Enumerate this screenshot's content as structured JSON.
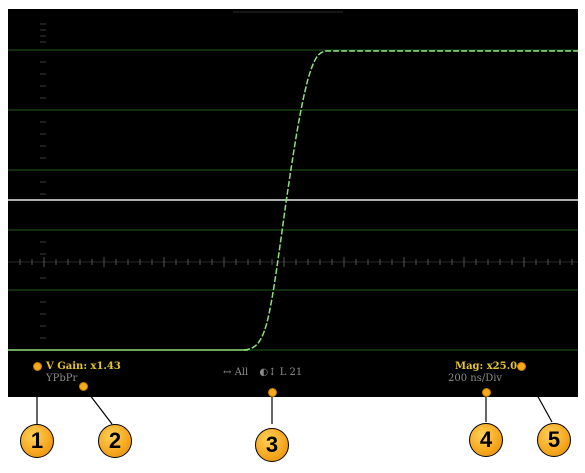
{
  "readouts": {
    "v_gain": "V Gain: x1.43",
    "color_space": "YPbPr",
    "horizontal_icon": "horizontal-arrows-icon",
    "horizontal_mode": "All",
    "line_icon": "line-select-icon",
    "line_value": "L 21",
    "magnification": "Mag: x25.0",
    "time_scale": "200 ns/Div"
  },
  "callouts": [
    "1",
    "2",
    "3",
    "4",
    "5"
  ],
  "colors": {
    "background": "#000000",
    "trace": "#8fe07a",
    "graticule": "#1f4a1f",
    "readout_accent": "#e8c62a",
    "readout_secondary": "#8c8c8c",
    "callout_fill": "#f5a51c"
  }
}
